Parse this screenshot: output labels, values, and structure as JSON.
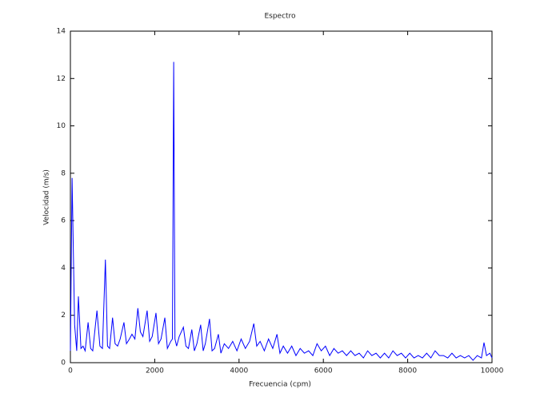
{
  "chart_data": {
    "type": "line",
    "title": "Espectro",
    "x_label": "Frecuencia (cpm)",
    "y_label": "Velocidad (m/s)",
    "x": [
      0,
      40,
      100,
      150,
      190,
      250,
      300,
      350,
      420,
      480,
      530,
      630,
      700,
      760,
      830,
      880,
      930,
      1000,
      1060,
      1120,
      1180,
      1270,
      1330,
      1400,
      1460,
      1530,
      1600,
      1660,
      1720,
      1820,
      1880,
      1940,
      2030,
      2090,
      2150,
      2240,
      2300,
      2380,
      2420,
      2450,
      2480,
      2520,
      2580,
      2680,
      2740,
      2800,
      2880,
      2940,
      3000,
      3090,
      3150,
      3200,
      3300,
      3360,
      3420,
      3510,
      3570,
      3650,
      3750,
      3850,
      3950,
      4050,
      4150,
      4250,
      4350,
      4420,
      4500,
      4600,
      4700,
      4800,
      4900,
      4970,
      5050,
      5150,
      5250,
      5350,
      5450,
      5550,
      5650,
      5750,
      5850,
      5950,
      6050,
      6150,
      6250,
      6350,
      6450,
      6550,
      6650,
      6750,
      6850,
      6950,
      7050,
      7150,
      7250,
      7350,
      7450,
      7550,
      7650,
      7750,
      7850,
      7950,
      8050,
      8150,
      8250,
      8350,
      8450,
      8550,
      8650,
      8750,
      8850,
      8950,
      9050,
      9150,
      9250,
      9350,
      9450,
      9550,
      9650,
      9750,
      9810,
      9870,
      9950,
      10000
    ],
    "series": [
      {
        "name": "Espectro",
        "color": "#0000ff",
        "values": [
          0.5,
          7.8,
          1.6,
          0.5,
          2.8,
          0.6,
          0.7,
          0.5,
          1.7,
          0.6,
          0.5,
          2.2,
          0.7,
          0.6,
          4.35,
          0.7,
          0.6,
          1.9,
          0.8,
          0.7,
          1.0,
          1.7,
          0.8,
          1.0,
          1.2,
          1.0,
          2.3,
          1.3,
          1.1,
          2.2,
          0.9,
          1.1,
          2.1,
          0.8,
          1.0,
          1.9,
          0.6,
          0.9,
          1.0,
          12.7,
          1.0,
          0.7,
          1.1,
          1.5,
          0.7,
          0.6,
          1.4,
          0.5,
          0.8,
          1.6,
          0.5,
          0.8,
          1.85,
          0.5,
          0.6,
          1.2,
          0.4,
          0.8,
          0.6,
          0.9,
          0.5,
          1.0,
          0.6,
          0.9,
          1.65,
          0.7,
          0.9,
          0.5,
          1.0,
          0.6,
          1.2,
          0.4,
          0.7,
          0.4,
          0.7,
          0.3,
          0.6,
          0.4,
          0.5,
          0.3,
          0.8,
          0.5,
          0.7,
          0.3,
          0.6,
          0.4,
          0.5,
          0.3,
          0.5,
          0.3,
          0.4,
          0.2,
          0.5,
          0.3,
          0.4,
          0.2,
          0.4,
          0.2,
          0.5,
          0.3,
          0.4,
          0.2,
          0.4,
          0.2,
          0.3,
          0.2,
          0.4,
          0.2,
          0.5,
          0.3,
          0.3,
          0.2,
          0.4,
          0.2,
          0.3,
          0.2,
          0.3,
          0.1,
          0.3,
          0.2,
          0.85,
          0.3,
          0.4,
          0.2
        ]
      }
    ],
    "xlim": [
      0,
      10000
    ],
    "xticks": [
      0,
      2000,
      4000,
      6000,
      8000,
      10000
    ],
    "ylim": [
      0,
      14
    ],
    "yticks": [
      0,
      2,
      4,
      6,
      8,
      10,
      12,
      14
    ]
  }
}
